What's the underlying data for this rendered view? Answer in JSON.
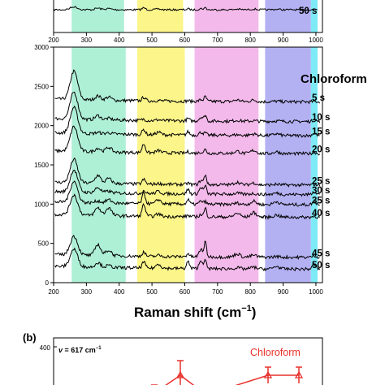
{
  "chart_data": [
    {
      "type": "line",
      "panel": "top (cropped)",
      "x_ticks": [
        200,
        300,
        400,
        500,
        600,
        700,
        800,
        900,
        1000
      ],
      "visible_series_label": "50 s",
      "bands": [
        {
          "from": 255,
          "to": 415,
          "color": "#aef0d6"
        },
        {
          "from": 455,
          "to": 595,
          "color": "#fbf58a"
        },
        {
          "from": 630,
          "to": 825,
          "color": "#f3b9ea"
        },
        {
          "from": 845,
          "to": 985,
          "color": "#b4b1f3"
        },
        {
          "from": 985,
          "to": 1005,
          "color": "#7deaf6"
        }
      ]
    },
    {
      "type": "line",
      "panel": "main",
      "title": "Chloroform",
      "xlabel_main": "Raman shift (cm",
      "xlabel_sup": "−1",
      "xlabel_end": ")",
      "xlim": [
        200,
        1020
      ],
      "ylim": [
        0,
        3000
      ],
      "x_ticks": [
        200,
        300,
        400,
        500,
        600,
        700,
        800,
        900,
        1000
      ],
      "y_ticks": [
        0,
        500,
        1000,
        1500,
        2000,
        2500,
        3000
      ],
      "bands": [
        {
          "from": 255,
          "to": 420,
          "color": "#aef0d6"
        },
        {
          "from": 455,
          "to": 600,
          "color": "#fbf58a"
        },
        {
          "from": 630,
          "to": 825,
          "color": "#f3b9ea"
        },
        {
          "from": 845,
          "to": 985,
          "color": "#b4b1f3"
        },
        {
          "from": 985,
          "to": 1005,
          "color": "#7deaf6"
        }
      ],
      "series": [
        {
          "name": "5 s",
          "offset": 2300
        },
        {
          "name": "10 s",
          "offset": 2050
        },
        {
          "name": "15 s",
          "offset": 1870
        },
        {
          "name": "20 s",
          "offset": 1640
        },
        {
          "name": "25 s",
          "offset": 1240
        },
        {
          "name": "30 s",
          "offset": 1120
        },
        {
          "name": "35 s",
          "offset": 990
        },
        {
          "name": "40 s",
          "offset": 830
        },
        {
          "name": "45 s",
          "offset": 320
        },
        {
          "name": "50 s",
          "offset": 170
        }
      ],
      "peaks": [
        {
          "x": 262,
          "h": 300,
          "w": 16
        },
        {
          "x": 335,
          "h": 160,
          "w": 12
        },
        {
          "x": 368,
          "h": 120,
          "w": 12
        },
        {
          "x": 475,
          "h": 200,
          "w": 7
        },
        {
          "x": 520,
          "h": 70,
          "w": 10
        },
        {
          "x": 610,
          "h": 90,
          "w": 6
        },
        {
          "x": 650,
          "h": 120,
          "w": 8
        },
        {
          "x": 663,
          "h": 200,
          "w": 5
        },
        {
          "x": 760,
          "h": 60,
          "w": 12
        },
        {
          "x": 810,
          "h": 70,
          "w": 12
        },
        {
          "x": 880,
          "h": 50,
          "w": 12
        },
        {
          "x": 995,
          "h": 60,
          "w": 8
        }
      ]
    },
    {
      "type": "line",
      "panel": "(b) (cropped)",
      "panel_label": "(b)",
      "annotation_prefix": "v",
      "annotation_value": " = 617 cm",
      "annotation_sup": "−1",
      "y_ticks": [
        400
      ],
      "legend": "Chloroform",
      "series_color": "#e8302a"
    }
  ]
}
